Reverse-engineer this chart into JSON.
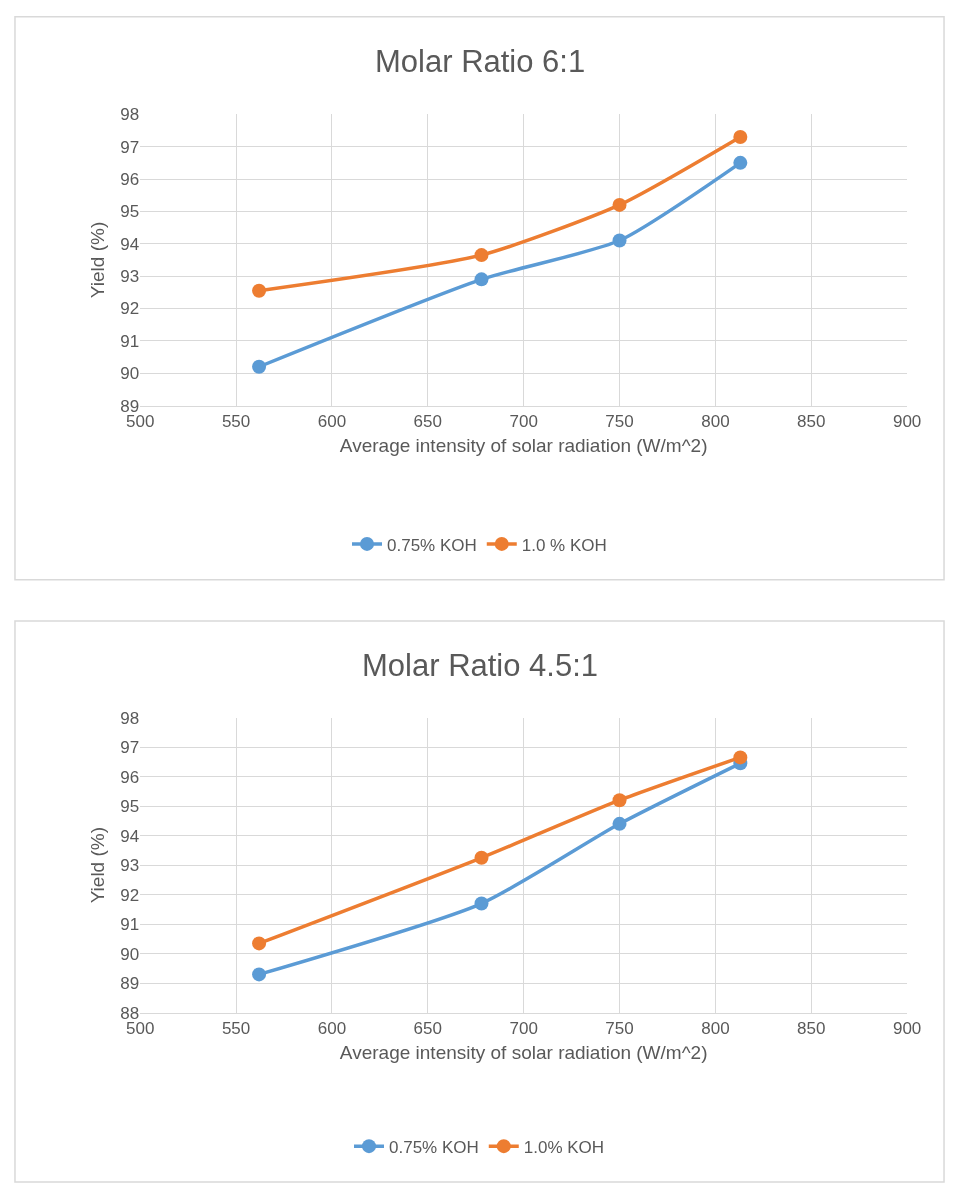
{
  "chart_data": [
    {
      "type": "line",
      "title": "Molar Ratio 6:1",
      "xlabel": "Average intensity of solar radiation (W/m^2)",
      "ylabel": "Yield (%)",
      "x": [
        562,
        678,
        750,
        813
      ],
      "series": [
        {
          "name": "0.75% KOH",
          "color": "#5b9bd5",
          "values": [
            90.2,
            92.9,
            94.1,
            96.5
          ]
        },
        {
          "name": "1.0 % KOH",
          "color": "#ed7d31",
          "values": [
            92.55,
            93.65,
            95.2,
            97.3
          ]
        }
      ],
      "xlim": [
        500,
        900
      ],
      "xticks": [
        500,
        550,
        600,
        650,
        700,
        750,
        800,
        850,
        900
      ],
      "ylim": [
        89,
        98
      ],
      "yticks": [
        89,
        90,
        91,
        92,
        93,
        94,
        95,
        96,
        97,
        98
      ],
      "grid": true,
      "legend": "bottom",
      "marker": "circle",
      "line_style": "solid"
    },
    {
      "type": "line",
      "title": "Molar Ratio 4.5:1",
      "xlabel": "Average intensity of solar radiation (W/m^2)",
      "ylabel": "Yield (%)",
      "x": [
        562,
        678,
        750,
        813
      ],
      "series": [
        {
          "name": "0.75% KOH",
          "color": "#5b9bd5",
          "values": [
            89.3,
            91.7,
            94.4,
            96.45
          ]
        },
        {
          "name": "1.0% KOH",
          "color": "#ed7d31",
          "values": [
            90.35,
            93.25,
            95.2,
            96.65
          ]
        }
      ],
      "xlim": [
        500,
        900
      ],
      "xticks": [
        500,
        550,
        600,
        650,
        700,
        750,
        800,
        850,
        900
      ],
      "ylim": [
        88,
        98
      ],
      "yticks": [
        88,
        89,
        90,
        91,
        92,
        93,
        94,
        95,
        96,
        97,
        98
      ],
      "grid": true,
      "legend": "bottom",
      "marker": "circle",
      "line_style": "solid"
    }
  ]
}
